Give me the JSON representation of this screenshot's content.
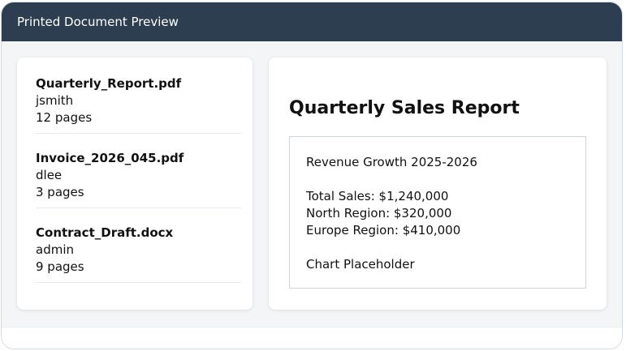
{
  "window": {
    "title": "Printed Document Preview"
  },
  "documents": [
    {
      "name": "Quarterly_Report.pdf",
      "owner": "jsmith",
      "pages": "12 pages"
    },
    {
      "name": "Invoice_2026_045.pdf",
      "owner": "dlee",
      "pages": "3 pages"
    },
    {
      "name": "Contract_Draft.docx",
      "owner": "admin",
      "pages": "9 pages"
    }
  ],
  "preview": {
    "title": "Quarterly Sales Report",
    "subtitle": "Revenue Growth 2025-2026",
    "lines": [
      "Total Sales: $1,240,000",
      "North Region: $320,000",
      "Europe Region: $410,000"
    ],
    "chart_placeholder": "Chart Placeholder"
  },
  "colors": {
    "titlebar": "#2c3e50",
    "background": "#f3f5f7",
    "card": "#ffffff"
  }
}
